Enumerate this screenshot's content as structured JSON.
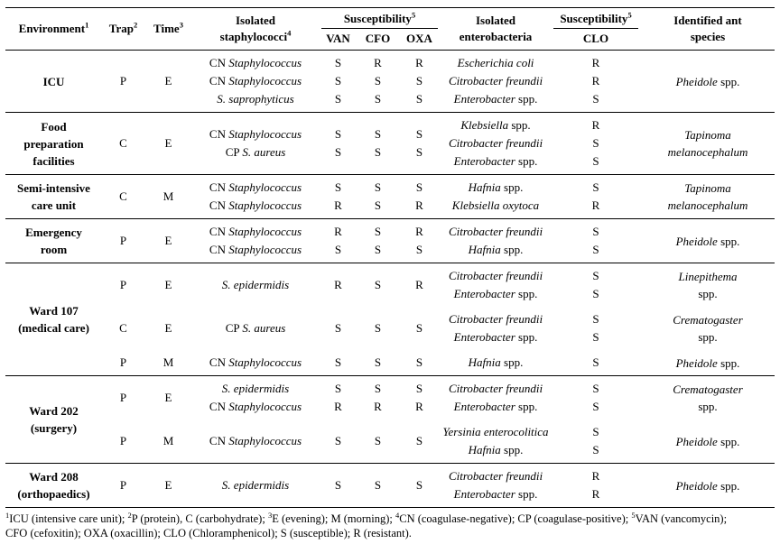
{
  "table": {
    "header": {
      "environment": "Environment",
      "environment_sup": "1",
      "trap": "Trap",
      "trap_sup": "2",
      "time": "Time",
      "time_sup": "3",
      "staph_line1": "Isolated",
      "staph_line2": "staphylococci",
      "staph_sup": "4",
      "susceptibility": "Susceptibility",
      "susceptibility_sup": "5",
      "van": "VAN",
      "cfo": "CFO",
      "oxa": "OXA",
      "entero_line1": "Isolated",
      "entero_line2": "enterobacteria",
      "susceptibility2": "Susceptibility",
      "susceptibility2_sup": "5",
      "clo": "CLO",
      "ant_line1": "Identified ant",
      "ant_line2": "species"
    },
    "sections": [
      {
        "environment": [
          "ICU"
        ],
        "groups": [
          {
            "trap": "P",
            "time": "E",
            "staph": [
              {
                "name": {
                  "pre": "CN ",
                  "it": "Staphylococcus",
                  "post": ""
                },
                "van": "S",
                "cfo": "R",
                "oxa": "R"
              },
              {
                "name": {
                  "pre": "CN ",
                  "it": "Staphylococcus",
                  "post": ""
                },
                "van": "S",
                "cfo": "S",
                "oxa": "S"
              },
              {
                "name": {
                  "pre": "",
                  "it": "S. saprophyticus",
                  "post": ""
                },
                "van": "S",
                "cfo": "S",
                "oxa": "S"
              }
            ],
            "entero": [
              {
                "name": {
                  "pre": "",
                  "it": "Escherichia coli",
                  "post": ""
                },
                "clo": "R"
              },
              {
                "name": {
                  "pre": "",
                  "it": "Citrobacter freundii",
                  "post": ""
                },
                "clo": "R"
              },
              {
                "name": {
                  "pre": "",
                  "it": "Enterobacter",
                  "post": " spp."
                },
                "clo": "S"
              }
            ],
            "ant": [
              {
                "it": "Pheidole",
                "post": " spp."
              }
            ]
          }
        ]
      },
      {
        "environment": [
          "Food",
          "preparation",
          "facilities"
        ],
        "groups": [
          {
            "trap": "C",
            "time": "E",
            "staph": [
              {
                "name": {
                  "pre": "CN ",
                  "it": "Staphylococcus",
                  "post": ""
                },
                "van": "S",
                "cfo": "S",
                "oxa": "S"
              },
              {
                "name": {
                  "pre": "CP ",
                  "it": "S. aureus",
                  "post": ""
                },
                "van": "S",
                "cfo": "S",
                "oxa": "S"
              }
            ],
            "entero": [
              {
                "name": {
                  "pre": "",
                  "it": "Klebsiella",
                  "post": " spp."
                },
                "clo": "R"
              },
              {
                "name": {
                  "pre": "",
                  "it": "Citrobacter freundii",
                  "post": ""
                },
                "clo": "S"
              },
              {
                "name": {
                  "pre": "",
                  "it": "Enterobacter",
                  "post": " spp."
                },
                "clo": "S"
              }
            ],
            "ant": [
              {
                "it": "Tapinoma",
                "post": ""
              },
              {
                "it": "melanocephalum",
                "post": ""
              }
            ]
          }
        ]
      },
      {
        "environment": [
          "Semi-intensive",
          "care unit"
        ],
        "groups": [
          {
            "trap": "C",
            "time": "M",
            "staph": [
              {
                "name": {
                  "pre": "CN ",
                  "it": "Staphylococcus",
                  "post": ""
                },
                "van": "S",
                "cfo": "S",
                "oxa": "S"
              },
              {
                "name": {
                  "pre": "CN ",
                  "it": "Staphylococcus",
                  "post": ""
                },
                "van": "R",
                "cfo": "S",
                "oxa": "R"
              }
            ],
            "entero": [
              {
                "name": {
                  "pre": "",
                  "it": "Hafnia",
                  "post": " spp."
                },
                "clo": "S"
              },
              {
                "name": {
                  "pre": "",
                  "it": "Klebsiella oxytoca",
                  "post": ""
                },
                "clo": "R"
              }
            ],
            "ant": [
              {
                "it": "Tapinoma",
                "post": ""
              },
              {
                "it": "melanocephalum",
                "post": ""
              }
            ]
          }
        ]
      },
      {
        "environment": [
          "Emergency",
          "room"
        ],
        "groups": [
          {
            "trap": "P",
            "time": "E",
            "staph": [
              {
                "name": {
                  "pre": "CN ",
                  "it": "Staphylococcus",
                  "post": ""
                },
                "van": "R",
                "cfo": "S",
                "oxa": "R"
              },
              {
                "name": {
                  "pre": "CN ",
                  "it": "Staphylococcus",
                  "post": ""
                },
                "van": "S",
                "cfo": "S",
                "oxa": "S"
              }
            ],
            "entero": [
              {
                "name": {
                  "pre": "",
                  "it": "Citrobacter freundii",
                  "post": ""
                },
                "clo": "S"
              },
              {
                "name": {
                  "pre": "",
                  "it": "Hafnia",
                  "post": " spp."
                },
                "clo": "S"
              }
            ],
            "ant": [
              {
                "it": "Pheidole",
                "post": " spp."
              }
            ]
          }
        ]
      },
      {
        "environment": [
          "Ward 107",
          "(medical care)"
        ],
        "groups": [
          {
            "trap": "P",
            "time": "E",
            "staph": [
              {
                "name": {
                  "pre": "",
                  "it": "S. epidermidis",
                  "post": ""
                },
                "van": "R",
                "cfo": "S",
                "oxa": "R"
              }
            ],
            "entero": [
              {
                "name": {
                  "pre": "",
                  "it": "Citrobacter freundii",
                  "post": ""
                },
                "clo": "S"
              },
              {
                "name": {
                  "pre": "",
                  "it": "Enterobacter",
                  "post": " spp."
                },
                "clo": "S"
              }
            ],
            "ant": [
              {
                "it": "Linepithema",
                "post": ""
              },
              {
                "it": "",
                "post": "spp."
              }
            ]
          },
          {
            "trap": "C",
            "time": "E",
            "staph": [
              {
                "name": {
                  "pre": "CP ",
                  "it": "S. aureus",
                  "post": ""
                },
                "van": "S",
                "cfo": "S",
                "oxa": "S"
              }
            ],
            "entero": [
              {
                "name": {
                  "pre": "",
                  "it": "Citrobacter freundii",
                  "post": ""
                },
                "clo": "S"
              },
              {
                "name": {
                  "pre": "",
                  "it": "Enterobacter",
                  "post": " spp."
                },
                "clo": "S"
              }
            ],
            "ant": [
              {
                "it": "Crematogaster",
                "post": ""
              },
              {
                "it": "",
                "post": "spp."
              }
            ]
          },
          {
            "trap": "P",
            "time": "M",
            "staph": [
              {
                "name": {
                  "pre": "CN ",
                  "it": "Staphylococcus",
                  "post": ""
                },
                "van": "S",
                "cfo": "S",
                "oxa": "S"
              }
            ],
            "entero": [
              {
                "name": {
                  "pre": "",
                  "it": "Hafnia",
                  "post": " spp."
                },
                "clo": "S"
              }
            ],
            "ant": [
              {
                "it": "Pheidole",
                "post": " spp."
              }
            ]
          }
        ]
      },
      {
        "environment": [
          "Ward 202",
          "(surgery)"
        ],
        "groups": [
          {
            "trap": "P",
            "time": "E",
            "staph": [
              {
                "name": {
                  "pre": "",
                  "it": "S. epidermidis",
                  "post": ""
                },
                "van": "S",
                "cfo": "S",
                "oxa": "S"
              },
              {
                "name": {
                  "pre": "CN ",
                  "it": "Staphylococcus",
                  "post": ""
                },
                "van": "R",
                "cfo": "R",
                "oxa": "R"
              }
            ],
            "entero": [
              {
                "name": {
                  "pre": "",
                  "it": "Citrobacter freundii",
                  "post": ""
                },
                "clo": "S"
              },
              {
                "name": {
                  "pre": "",
                  "it": "Enterobacter",
                  "post": " spp."
                },
                "clo": "S"
              }
            ],
            "ant": [
              {
                "it": "Crematogaster",
                "post": ""
              },
              {
                "it": "",
                "post": "spp."
              }
            ]
          },
          {
            "trap": "P",
            "time": "M",
            "staph": [
              {
                "name": {
                  "pre": "CN ",
                  "it": "Staphylococcus",
                  "post": ""
                },
                "van": "S",
                "cfo": "S",
                "oxa": "S"
              }
            ],
            "entero": [
              {
                "name": {
                  "pre": "",
                  "it": "Yersinia enterocolitica",
                  "post": ""
                },
                "clo": "S"
              },
              {
                "name": {
                  "pre": "",
                  "it": "Hafnia",
                  "post": " spp."
                },
                "clo": "S"
              }
            ],
            "ant": [
              {
                "it": "Pheidole",
                "post": " spp."
              }
            ]
          }
        ]
      },
      {
        "environment": [
          "Ward 208",
          "(orthopaedics)"
        ],
        "groups": [
          {
            "trap": "P",
            "time": "E",
            "staph": [
              {
                "name": {
                  "pre": "",
                  "it": "S. epidermidis",
                  "post": ""
                },
                "van": "S",
                "cfo": "S",
                "oxa": "S"
              }
            ],
            "entero": [
              {
                "name": {
                  "pre": "",
                  "it": "Citrobacter freundii",
                  "post": ""
                },
                "clo": "R"
              },
              {
                "name": {
                  "pre": "",
                  "it": "Enterobacter",
                  "post": " spp."
                },
                "clo": "R"
              }
            ],
            "ant": [
              {
                "it": "Pheidole",
                "post": " spp."
              }
            ]
          }
        ]
      }
    ]
  },
  "footnote": {
    "segments": [
      {
        "sup": "1",
        "text": "ICU (intensive care unit); "
      },
      {
        "sup": "2",
        "text": "P (protein), C (carbohydrate); "
      },
      {
        "sup": "3",
        "text": "E (evening); M (morning); "
      },
      {
        "sup": "4",
        "text": "CN (coagulase-negative); CP (coagulase-positive); "
      },
      {
        "sup": "5",
        "text": "VAN (vancomycin);"
      },
      {
        "br": true
      },
      {
        "text": "CFO (cefoxitin); OXA (oxacillin); CLO (Chloramphenicol); S (susceptible); R (resistant)."
      }
    ]
  }
}
